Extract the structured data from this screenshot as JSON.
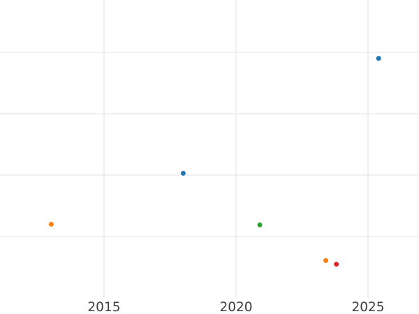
{
  "chart_data": {
    "type": "scatter",
    "title": "",
    "xlabel": "",
    "ylabel": "",
    "x_ticks": [
      2015,
      2020,
      2025
    ],
    "x_tick_labels": [
      "2015",
      "2020",
      "2025"
    ],
    "xlim": [
      2011.06,
      2026.93
    ],
    "ylim": [
      -0.26,
      4.85
    ],
    "y_gridlines": [
      1,
      2,
      3,
      4
    ],
    "y_tick_labels": [],
    "grid": true,
    "legend_position": "none",
    "marker_radius_px": 3.5,
    "series": [
      {
        "name": "series-blue",
        "color": "#1f77b4",
        "points": [
          {
            "x": 2018.0,
            "y": 2.03
          },
          {
            "x": 2025.4,
            "y": 3.9
          }
        ]
      },
      {
        "name": "series-orange",
        "color": "#ff7f0e",
        "points": [
          {
            "x": 2013.0,
            "y": 1.2
          },
          {
            "x": 2023.4,
            "y": 0.61
          }
        ]
      },
      {
        "name": "series-green",
        "color": "#2ca02c",
        "points": [
          {
            "x": 2020.9,
            "y": 1.19
          }
        ]
      },
      {
        "name": "series-red",
        "color": "#d62728",
        "points": [
          {
            "x": 2023.8,
            "y": 0.55
          }
        ]
      }
    ]
  },
  "style": {
    "background_color": "#ffffff",
    "gridline_color": "#ebebeb",
    "tick_label_color": "#3d3d3d"
  }
}
